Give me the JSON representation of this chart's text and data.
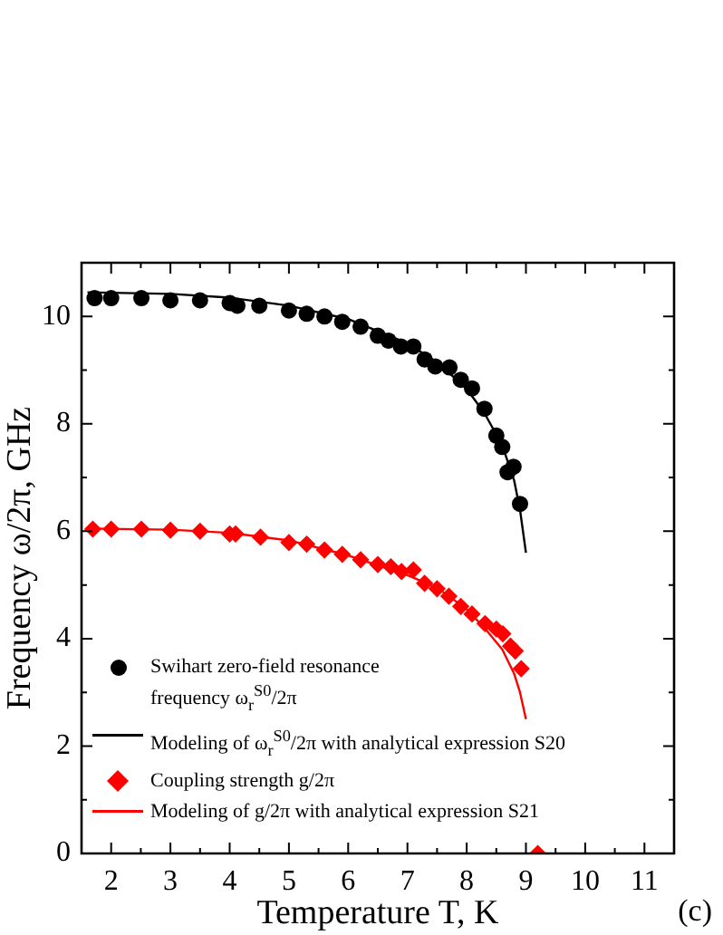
{
  "chart_data": {
    "type": "scatter",
    "xlabel": "Temperature T, K",
    "ylabel": "Frequency ω/2π, GHz",
    "xlim": [
      1.5,
      11.5
    ],
    "ylim": [
      0,
      11
    ],
    "xticks": [
      2,
      {
        "value": 2.5,
        "label": null
      },
      3,
      {
        "value": 3.5,
        "label": null
      },
      4,
      {
        "value": 4.5,
        "label": null
      },
      5,
      {
        "value": 5.5,
        "label": null
      },
      6,
      {
        "value": 6.5,
        "label": null
      },
      7,
      {
        "value": 7.5,
        "label": null
      },
      8,
      {
        "value": 8.5,
        "label": null
      },
      9,
      {
        "value": 9.5,
        "label": null
      },
      10,
      {
        "value": 10.5,
        "label": null
      },
      11
    ],
    "yticks": [
      0,
      {
        "value": 1,
        "label": null
      },
      2,
      {
        "value": 3,
        "label": null
      },
      4,
      {
        "value": 5,
        "label": null
      },
      6,
      {
        "value": 7,
        "label": null
      },
      8,
      {
        "value": 9,
        "label": null
      },
      10
    ],
    "grid": false,
    "legend": "bottom left",
    "annotations": [
      "(c)"
    ],
    "series": [
      {
        "name": "Swihart zero-field resonance frequency  ω$_{r}$$^{S0}$/2π",
        "type": "scatter",
        "marker": "circle",
        "color": "#000000",
        "x": [
          1.72,
          2.0,
          2.51,
          3.0,
          3.5,
          4.0,
          4.13,
          4.5,
          5.0,
          5.3,
          5.6,
          5.9,
          6.21,
          6.5,
          6.68,
          6.89,
          7.1,
          7.29,
          7.47,
          7.71,
          7.9,
          8.09,
          8.3,
          8.5,
          8.6,
          8.69,
          8.79,
          8.9
        ],
        "values": [
          10.34,
          10.34,
          10.34,
          10.3,
          10.3,
          10.25,
          10.2,
          10.2,
          10.11,
          10.05,
          10.0,
          9.9,
          9.81,
          9.64,
          9.55,
          9.44,
          9.44,
          9.2,
          9.07,
          9.05,
          8.82,
          8.66,
          8.28,
          7.78,
          7.57,
          7.1,
          7.2,
          6.51
        ]
      },
      {
        "name": "Modeling of  ω$_{r}$$^{S0}$/2π with analytical expression  S20",
        "type": "line",
        "marker": "none",
        "line_style": "solid",
        "color": "#000000",
        "x": [
          1.6,
          3,
          4,
          5,
          6,
          7,
          7.5,
          8,
          8.3,
          8.6,
          8.8,
          8.9,
          9.0
        ],
        "values": [
          10.45,
          10.42,
          10.35,
          10.2,
          9.95,
          9.5,
          9.15,
          8.65,
          8.2,
          7.6,
          6.95,
          6.4,
          5.6
        ]
      },
      {
        "name": "Coupling strength  g/2π",
        "type": "scatter",
        "marker": "diamond",
        "color": "#ff0000",
        "x": [
          1.69,
          2.0,
          2.51,
          3.0,
          3.5,
          4.0,
          4.1,
          4.52,
          5.0,
          5.3,
          5.6,
          5.9,
          6.21,
          6.5,
          6.72,
          6.9,
          7.1,
          7.29,
          7.5,
          7.7,
          7.9,
          8.09,
          8.31,
          8.5,
          8.61,
          8.74,
          8.82,
          8.92,
          9.2
        ],
        "values": [
          6.04,
          6.04,
          6.04,
          6.02,
          6.0,
          5.95,
          5.95,
          5.89,
          5.79,
          5.76,
          5.65,
          5.57,
          5.47,
          5.38,
          5.34,
          5.25,
          5.28,
          5.03,
          4.93,
          4.79,
          4.6,
          4.46,
          4.28,
          4.18,
          4.09,
          3.86,
          3.77,
          3.44,
          0
        ]
      },
      {
        "name": "Modeling of  g/2π with analytical expression  S21",
        "type": "line",
        "marker": "none",
        "line_style": "solid",
        "color": "#ff0000",
        "x": [
          1.6,
          3,
          4,
          5,
          6,
          7,
          7.5,
          8,
          8.3,
          8.6,
          8.8,
          8.9,
          9.0
        ],
        "values": [
          6.05,
          6.03,
          5.97,
          5.83,
          5.55,
          5.18,
          4.95,
          4.55,
          4.2,
          3.8,
          3.35,
          3.0,
          2.5
        ]
      }
    ]
  }
}
